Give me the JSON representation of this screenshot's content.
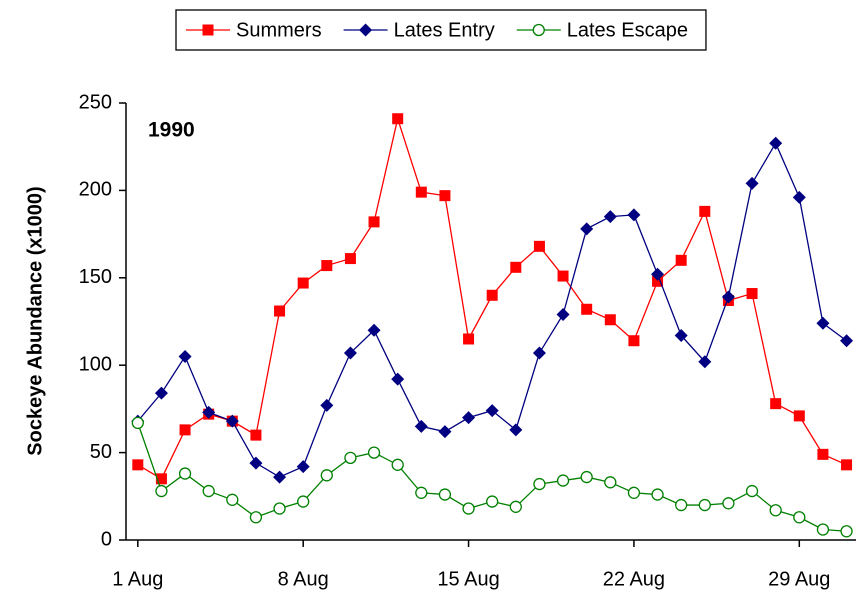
{
  "chart_data": {
    "type": "line",
    "annotation": "1990",
    "y_label": "Sockeye Abundance (x1000)",
    "x": [
      1,
      2,
      3,
      4,
      5,
      6,
      7,
      8,
      9,
      10,
      11,
      12,
      13,
      14,
      15,
      16,
      17,
      18,
      19,
      20,
      21,
      22,
      23,
      24,
      25,
      26,
      27,
      28,
      29,
      30,
      31
    ],
    "series": [
      {
        "name": "Summers",
        "color": "#ff0000",
        "marker": "square",
        "values": [
          43,
          35,
          63,
          72,
          68,
          60,
          131,
          147,
          157,
          161,
          182,
          241,
          199,
          197,
          115,
          140,
          156,
          168,
          151,
          132,
          126,
          114,
          148,
          160,
          188,
          137,
          141,
          78,
          71,
          49,
          43
        ]
      },
      {
        "name": "Lates Entry",
        "color": "#000080",
        "marker": "diamond",
        "values": [
          68,
          84,
          105,
          73,
          68,
          44,
          36,
          42,
          77,
          107,
          120,
          92,
          65,
          62,
          70,
          74,
          63,
          107,
          129,
          178,
          185,
          186,
          152,
          117,
          102,
          139,
          204,
          227,
          196,
          124,
          114
        ]
      },
      {
        "name": "Lates Escape",
        "color": "#008000",
        "marker": "circle",
        "values": [
          67,
          28,
          38,
          28,
          23,
          13,
          18,
          22,
          37,
          47,
          50,
          43,
          27,
          26,
          18,
          22,
          19,
          32,
          34,
          36,
          33,
          27,
          26,
          20,
          20,
          21,
          28,
          17,
          13,
          6,
          5
        ]
      }
    ],
    "xlim": [
      0.5,
      31.4
    ],
    "xticks": [
      {
        "value": 1,
        "label": "1 Aug"
      },
      {
        "value": 8,
        "label": "8 Aug"
      },
      {
        "value": 15,
        "label": "15 Aug"
      },
      {
        "value": 22,
        "label": "22 Aug"
      },
      {
        "value": 29,
        "label": "29 Aug"
      }
    ],
    "ylim": [
      0,
      250
    ],
    "yticks": [
      0,
      50,
      100,
      150,
      200,
      250
    ],
    "grid": false,
    "legend": "top"
  }
}
